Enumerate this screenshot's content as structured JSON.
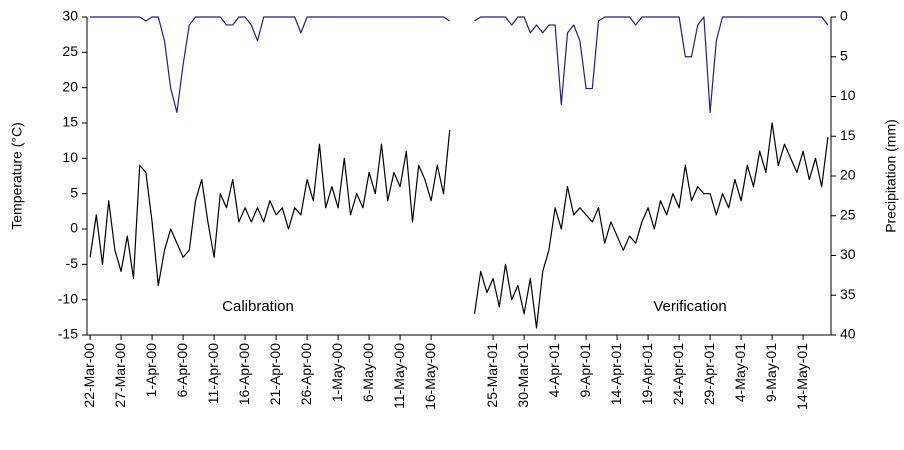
{
  "chart_data": {
    "type": "line",
    "y_label": "Temperature (°C)",
    "y2_label": "Precipitation (mm)",
    "annotations": [
      "Calibration",
      "Verification"
    ],
    "categories": [
      "22-Mar-00",
      null,
      null,
      null,
      null,
      "27-Mar-00",
      null,
      null,
      null,
      null,
      "1-Apr-00",
      null,
      null,
      null,
      null,
      "6-Apr-00",
      null,
      null,
      null,
      null,
      "11-Apr-00",
      null,
      null,
      null,
      null,
      "16-Apr-00",
      null,
      null,
      null,
      null,
      "21-Apr-00",
      null,
      null,
      null,
      null,
      "26-Apr-00",
      null,
      null,
      null,
      null,
      "1-May-00",
      null,
      null,
      null,
      null,
      "6-May-00",
      null,
      null,
      null,
      null,
      "11-May-00",
      null,
      null,
      null,
      null,
      "16-May-00",
      null,
      null,
      null,
      null,
      null,
      null,
      null,
      null,
      null,
      "25-Mar-01",
      null,
      null,
      null,
      null,
      "30-Mar-01",
      null,
      null,
      null,
      null,
      "4-Apr-01",
      null,
      null,
      null,
      null,
      "9-Apr-01",
      null,
      null,
      null,
      null,
      "14-Apr-01",
      null,
      null,
      null,
      null,
      "19-Apr-01",
      null,
      null,
      null,
      null,
      "24-Apr-01",
      null,
      null,
      null,
      null,
      "29-Apr-01",
      null,
      null,
      null,
      null,
      "4-May-01",
      null,
      null,
      null,
      null,
      "9-May-01",
      null,
      null,
      null,
      null,
      "14-May-01",
      null,
      null,
      null,
      null
    ],
    "series": [
      {
        "name": "Temperature",
        "color": "#000000",
        "axis": "y",
        "values": [
          -4,
          2,
          -5,
          4,
          -3,
          -6,
          -1,
          -7,
          9,
          8,
          1,
          -8,
          -3,
          0,
          -2,
          -4,
          -3,
          4,
          7,
          1,
          -4,
          5,
          3,
          7,
          1,
          3,
          1,
          3,
          1,
          4,
          2,
          3,
          0,
          3,
          2,
          7,
          4,
          12,
          3,
          6,
          3,
          10,
          2,
          5,
          3,
          8,
          5,
          12,
          4,
          8,
          6,
          11,
          1,
          9,
          7,
          4,
          9,
          5,
          14,
          null,
          null,
          null,
          -12,
          -6,
          -9,
          -7,
          -11,
          -5,
          -10,
          -8,
          -12,
          -7,
          -14,
          -6,
          -3,
          3,
          0,
          6,
          2,
          3,
          2,
          1,
          3,
          -2,
          1,
          -1,
          -3,
          -1,
          -2,
          1,
          3,
          0,
          4,
          2,
          5,
          3,
          9,
          4,
          6,
          5,
          5,
          2,
          5,
          3,
          7,
          4,
          9,
          6,
          11,
          8,
          15,
          9,
          12,
          10,
          8,
          11,
          7,
          10,
          6,
          13
        ]
      },
      {
        "name": "Precipitation",
        "color": "#1f1f8f",
        "axis": "y2",
        "values": [
          0,
          0,
          0,
          0,
          0,
          0,
          0,
          0,
          0,
          0.5,
          0,
          0,
          3,
          9,
          12,
          6,
          1,
          0,
          0,
          0,
          0,
          0,
          1,
          1,
          0,
          0,
          1,
          3,
          0,
          0,
          0,
          0,
          0,
          0,
          2,
          0,
          0,
          0,
          0,
          0,
          0,
          0,
          0,
          0,
          0,
          0,
          0,
          0,
          0,
          0,
          0,
          0,
          0,
          0,
          0,
          0,
          0,
          0,
          0.5,
          null,
          null,
          null,
          0.5,
          0,
          0,
          0,
          0,
          0,
          1,
          0,
          0,
          2,
          1,
          2,
          1,
          1,
          11,
          2,
          1,
          3,
          9,
          9,
          0.5,
          0,
          0,
          0,
          0,
          0,
          1,
          0,
          0,
          0,
          0,
          0,
          0,
          0,
          5,
          5,
          1,
          0,
          12,
          3,
          0,
          0,
          0,
          0,
          0,
          0,
          0,
          0,
          0,
          0,
          0,
          0,
          0,
          0,
          0,
          0,
          0,
          1
        ]
      }
    ],
    "ylim": [
      -15,
      30
    ],
    "yticks": [
      -15,
      -10,
      -5,
      0,
      5,
      10,
      15,
      20,
      25,
      30
    ],
    "y2lim": [
      40,
      0
    ],
    "y2ticks": [
      0,
      5,
      10,
      15,
      20,
      25,
      30,
      35,
      40
    ]
  }
}
